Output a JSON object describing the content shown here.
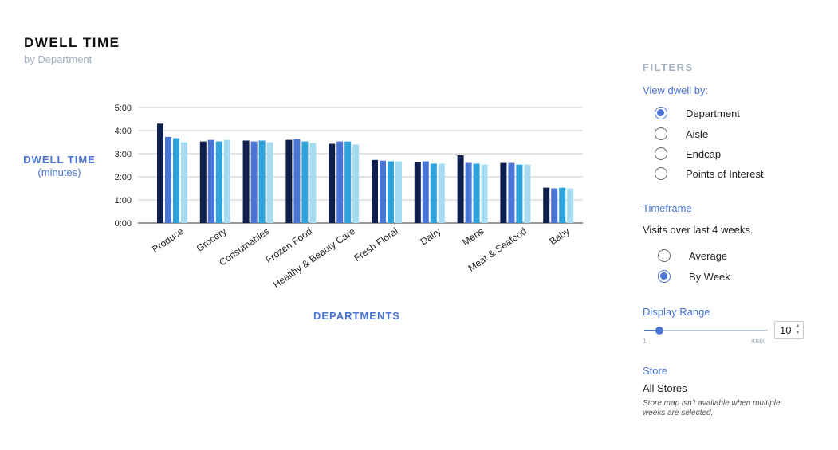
{
  "header": {
    "title": "DWELL TIME",
    "subtitle": "by Department"
  },
  "chart_data": {
    "type": "bar",
    "ylabel": "DWELL TIME",
    "ylabel_unit": "(minutes)",
    "xlabel": "DEPARTMENTS",
    "ylim": [
      0,
      5
    ],
    "yticks": [
      "0:00",
      "1:00",
      "2:00",
      "3:00",
      "4:00",
      "5:00"
    ],
    "grid": true,
    "categories": [
      "Produce",
      "Grocery",
      "Consumables",
      "Frozen Food",
      "Healthy & Beauty Care",
      "Fresh Floral",
      "Dairy",
      "Mens",
      "Meat & Seafood",
      "Baby"
    ],
    "series": [
      {
        "color": "#0e1f4d",
        "values": [
          4.3,
          3.53,
          3.57,
          3.6,
          3.43,
          2.73,
          2.63,
          2.93,
          2.6,
          1.53
        ]
      },
      {
        "color": "#4a74d6",
        "values": [
          3.73,
          3.6,
          3.53,
          3.63,
          3.53,
          2.7,
          2.67,
          2.6,
          2.6,
          1.5
        ]
      },
      {
        "color": "#2fa4dc",
        "values": [
          3.67,
          3.53,
          3.57,
          3.53,
          3.53,
          2.67,
          2.57,
          2.57,
          2.53,
          1.53
        ]
      },
      {
        "color": "#a6dcf1",
        "values": [
          3.5,
          3.6,
          3.5,
          3.47,
          3.4,
          2.67,
          2.57,
          2.53,
          2.53,
          1.5
        ]
      }
    ]
  },
  "filters": {
    "title": "FILTERS",
    "view_label": "View dwell by:",
    "view_options": [
      {
        "label": "Department",
        "selected": true
      },
      {
        "label": "Aisle",
        "selected": false
      },
      {
        "label": "Endcap",
        "selected": false
      },
      {
        "label": "Points of Interest",
        "selected": false
      }
    ],
    "timeframe_label": "Timeframe",
    "timeframe_text": "Visits over last 4 weeks.",
    "timeframe_options": [
      {
        "label": "Average",
        "selected": false
      },
      {
        "label": "By Week",
        "selected": true
      }
    ],
    "range_label": "Display Range",
    "range_min": "1",
    "range_max": "max",
    "range_value": "10",
    "range_fraction": 0.12,
    "store_label": "Store",
    "store_value": "All Stores",
    "store_note": "Store map isn't available when multiple weeks are selected."
  }
}
